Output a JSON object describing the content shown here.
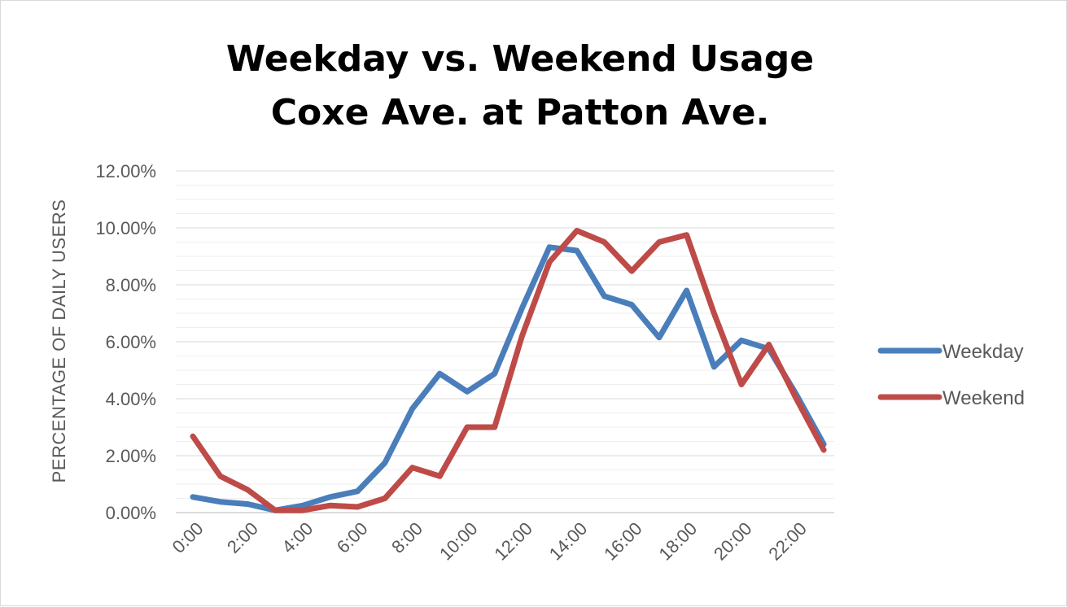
{
  "chart_data": {
    "type": "line",
    "title": [
      "Weekday vs. Weekend Usage",
      "Coxe Ave. at Patton Ave."
    ],
    "ylabel": "PERCENTAGE OF DAILY USERS",
    "xlabel": "",
    "x": [
      "0:00",
      "1:00",
      "2:00",
      "3:00",
      "4:00",
      "5:00",
      "6:00",
      "7:00",
      "8:00",
      "9:00",
      "10:00",
      "11:00",
      "12:00",
      "13:00",
      "14:00",
      "15:00",
      "16:00",
      "17:00",
      "18:00",
      "19:00",
      "20:00",
      "21:00",
      "22:00",
      "23:00"
    ],
    "x_tick_labels": [
      "0:00",
      "2:00",
      "4:00",
      "6:00",
      "8:00",
      "10:00",
      "12:00",
      "14:00",
      "16:00",
      "18:00",
      "20:00",
      "22:00"
    ],
    "ylim": [
      0,
      0.12
    ],
    "y_tick_labels": [
      "0.00%",
      "2.00%",
      "4.00%",
      "6.00%",
      "8.00%",
      "10.00%",
      "12.00%"
    ],
    "y_ticks": [
      0,
      0.02,
      0.04,
      0.06,
      0.08,
      0.1,
      0.12
    ],
    "y_minor_step": 0.005,
    "grid": true,
    "legend_position": "right",
    "series": [
      {
        "name": "Weekday",
        "color": "#4A7EBB",
        "values": [
          0.0055,
          0.0038,
          0.003,
          0.0008,
          0.0025,
          0.0055,
          0.0075,
          0.0175,
          0.0365,
          0.0488,
          0.0425,
          0.0488,
          0.0718,
          0.0932,
          0.092,
          0.076,
          0.073,
          0.0615,
          0.078,
          0.0512,
          0.0605,
          0.0575,
          0.0415,
          0.024
        ]
      },
      {
        "name": "Weekend",
        "color": "#BE4B48",
        "values": [
          0.0268,
          0.0128,
          0.008,
          0.0008,
          0.0008,
          0.0025,
          0.002,
          0.005,
          0.0158,
          0.0128,
          0.03,
          0.03,
          0.062,
          0.088,
          0.099,
          0.095,
          0.0848,
          0.095,
          0.0975,
          0.07,
          0.045,
          0.059,
          0.04,
          0.022
        ]
      }
    ]
  }
}
